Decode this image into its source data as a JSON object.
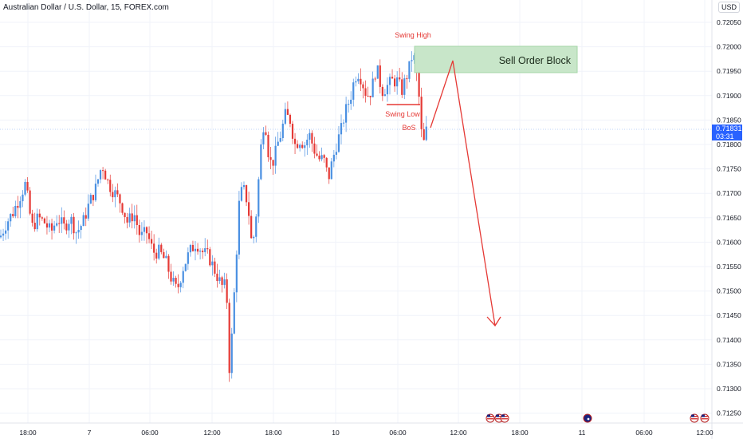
{
  "chart": {
    "title": "Australian Dollar / U.S. Dollar, 15, FOREX.com",
    "currency": "USD",
    "current_price": "0.71831",
    "countdown": "03:31"
  },
  "chart_data": {
    "type": "candlestick",
    "price_ticks": [
      "0.72050",
      "0.72000",
      "0.71950",
      "0.71900",
      "0.71850",
      "0.71800",
      "0.71750",
      "0.71700",
      "0.71650",
      "0.71600",
      "0.71550",
      "0.71500",
      "0.71450",
      "0.71400",
      "0.71350",
      "0.71300",
      "0.71250"
    ],
    "time_ticks": [
      "18:00",
      "7",
      "06:00",
      "12:00",
      "18:00",
      "10",
      "06:00",
      "12:00",
      "18:00",
      "11",
      "06:00",
      "12:00"
    ],
    "ylim": [
      0.7123,
      0.7206
    ],
    "annotations": {
      "swing_high": "Swing High",
      "swing_low": "Swing Low",
      "bos": "BoS",
      "order_block": "Sell Order Block"
    },
    "colors": {
      "up": "#4a90e2",
      "down": "#e53935",
      "annotation": "#e53935",
      "order_block_fill": "#c8e6c9"
    }
  },
  "events": [
    "us-flag-icon",
    "us-flag-icon",
    "us-flag-icon",
    "au-flag-icon",
    "us-flag-icon",
    "us-flag-icon"
  ]
}
